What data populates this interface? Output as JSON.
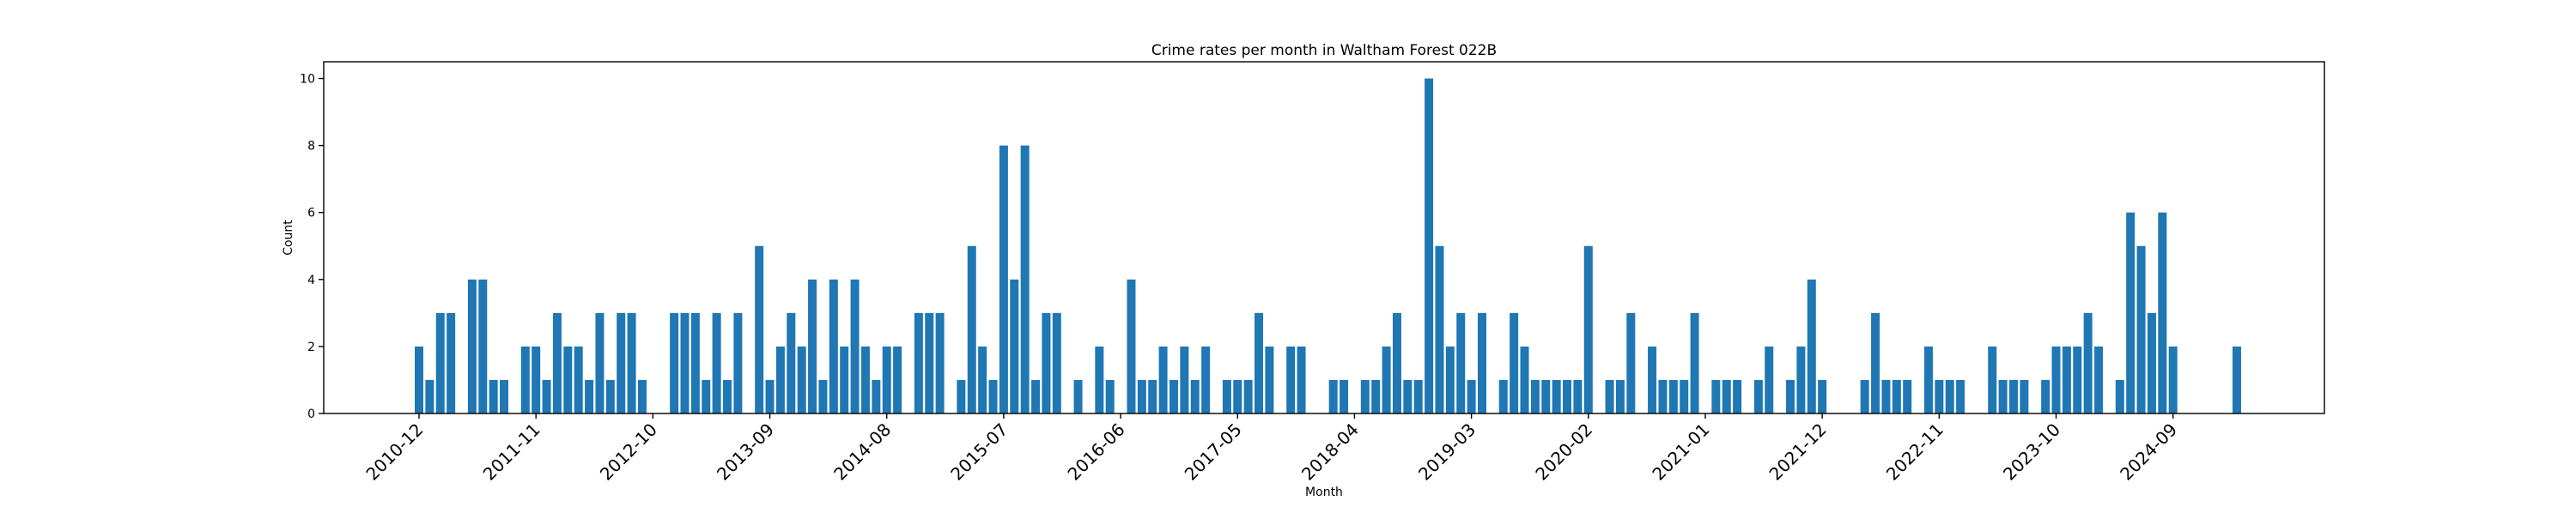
{
  "chart_data": {
    "type": "bar",
    "title": "Crime rates per month in Waltham Forest 022B",
    "xlabel": "Month",
    "ylabel": "Count",
    "ylim": [
      0,
      10.5
    ],
    "yticks": [
      0,
      2,
      4,
      6,
      8,
      10
    ],
    "grid": false,
    "bar_color": "#1f77b4",
    "x_tick_labels": [
      "2010-12",
      "2011-11",
      "2012-10",
      "2013-09",
      "2014-08",
      "2015-07",
      "2016-06",
      "2017-05",
      "2018-04",
      "2019-03",
      "2020-02",
      "2021-01",
      "2021-12",
      "2022-11",
      "2023-10",
      "2024-09"
    ],
    "x_start": "2010-12",
    "values": [
      2,
      1,
      3,
      3,
      0,
      4,
      4,
      1,
      1,
      0,
      2,
      2,
      1,
      3,
      2,
      2,
      1,
      3,
      1,
      3,
      3,
      1,
      0,
      0,
      3,
      3,
      3,
      1,
      3,
      1,
      3,
      0,
      5,
      1,
      2,
      3,
      2,
      4,
      1,
      4,
      2,
      4,
      2,
      1,
      2,
      2,
      0,
      3,
      3,
      3,
      0,
      1,
      5,
      2,
      1,
      8,
      4,
      8,
      1,
      3,
      3,
      0,
      1,
      0,
      2,
      1,
      0,
      4,
      1,
      1,
      2,
      1,
      2,
      1,
      2,
      0,
      1,
      1,
      1,
      3,
      2,
      0,
      2,
      2,
      0,
      0,
      1,
      1,
      0,
      1,
      1,
      2,
      3,
      1,
      1,
      10,
      5,
      2,
      3,
      1,
      3,
      0,
      1,
      3,
      2,
      1,
      1,
      1,
      1,
      1,
      5,
      0,
      1,
      1,
      3,
      0,
      2,
      1,
      1,
      1,
      3,
      0,
      1,
      1,
      1,
      0,
      1,
      2,
      0,
      1,
      2,
      4,
      1,
      0,
      0,
      0,
      1,
      3,
      1,
      1,
      1,
      0,
      2,
      1,
      1,
      1,
      0,
      0,
      2,
      1,
      1,
      1,
      0,
      1,
      2,
      2,
      2,
      3,
      2,
      0,
      1,
      6,
      5,
      3,
      6,
      2,
      0,
      0,
      0,
      0,
      0,
      2
    ]
  }
}
